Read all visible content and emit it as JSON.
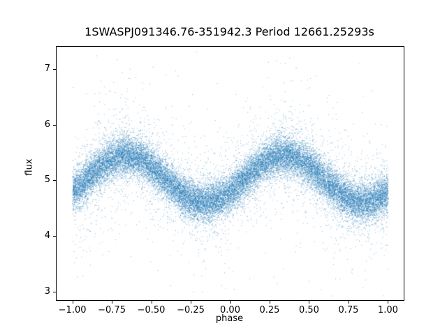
{
  "chart_data": {
    "type": "scatter",
    "title": "1SWASPJ091346.76-351942.3 Period 12661.25293s",
    "xlabel": "phase",
    "ylabel": "flux",
    "xlim": [
      -1.1,
      1.1
    ],
    "ylim": [
      2.85,
      7.4
    ],
    "xticks": [
      -1.0,
      -0.75,
      -0.5,
      -0.25,
      0.0,
      0.25,
      0.5,
      0.75,
      1.0
    ],
    "xtick_labels": [
      "−1.00",
      "−0.75",
      "−0.50",
      "−0.25",
      "0.00",
      "0.25",
      "0.50",
      "0.75",
      "1.00"
    ],
    "yticks": [
      3,
      4,
      5,
      6,
      7
    ],
    "ytick_labels": [
      "3",
      "4",
      "5",
      "6",
      "7"
    ],
    "marker_color_rgb": [
      31,
      119,
      180
    ],
    "marker_alpha": 0.55,
    "marker_size": 1,
    "n_points": 28000,
    "seed": 42,
    "model": {
      "type": "cosine",
      "mean_flux": 5.03,
      "amplitude": 0.42,
      "peak_phase": 0.34,
      "cycles_per_unit_phase": 1
    },
    "noise": {
      "core_sigma": 0.17,
      "core_frac": 0.85,
      "mid_sigma": 0.42,
      "mid_frac": 0.12,
      "tail_sigma": 0.85,
      "tail_frac": 0.03
    },
    "background": "#ffffff",
    "grid": false,
    "legend": null
  }
}
